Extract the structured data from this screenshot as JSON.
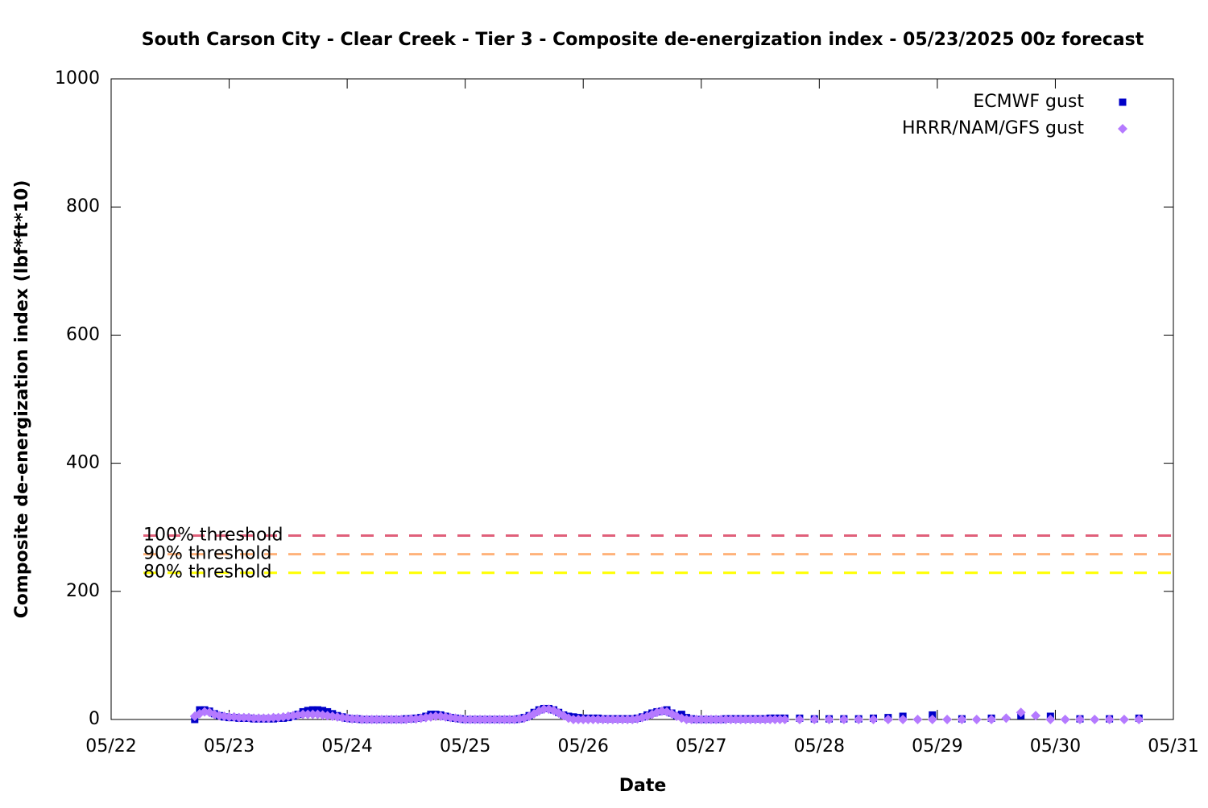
{
  "chart_data": {
    "type": "scatter",
    "title": "South Carson City - Clear Creek - Tier 3 - Composite de-energization index - 05/23/2025 00z forecast",
    "xlabel": "Date",
    "ylabel": "Composite de-energization index (lbf*ft*10)",
    "xlim": [
      0,
      216
    ],
    "xticks": [
      {
        "value": 0,
        "label": "05/22"
      },
      {
        "value": 24,
        "label": "05/23"
      },
      {
        "value": 48,
        "label": "05/24"
      },
      {
        "value": 72,
        "label": "05/25"
      },
      {
        "value": 96,
        "label": "05/26"
      },
      {
        "value": 120,
        "label": "05/27"
      },
      {
        "value": 144,
        "label": "05/28"
      },
      {
        "value": 168,
        "label": "05/29"
      },
      {
        "value": 192,
        "label": "05/30"
      },
      {
        "value": 216,
        "label": "05/31"
      }
    ],
    "ylim": [
      0,
      1000
    ],
    "yticks": [
      0,
      200,
      400,
      600,
      800,
      1000
    ],
    "legend": "top-right",
    "thresholds": [
      {
        "label": "100% threshold",
        "value": 287,
        "color": "#e0607a"
      },
      {
        "label": "90% threshold",
        "value": 258,
        "color": "#ffb27a"
      },
      {
        "label": "80% threshold",
        "value": 229,
        "color": "#ffff00"
      }
    ],
    "series": [
      {
        "name": "ECMWF gust",
        "color": "#0000c8",
        "marker": "square",
        "x": [
          17,
          18,
          19,
          20,
          21,
          22,
          23,
          24,
          25,
          26,
          27,
          28,
          29,
          30,
          31,
          32,
          33,
          34,
          35,
          36,
          37,
          38,
          39,
          40,
          41,
          42,
          43,
          44,
          45,
          46,
          47,
          48,
          49,
          50,
          51,
          52,
          53,
          54,
          55,
          56,
          57,
          58,
          59,
          60,
          61,
          62,
          63,
          64,
          65,
          66,
          67,
          68,
          69,
          70,
          71,
          72,
          73,
          74,
          75,
          76,
          77,
          78,
          79,
          80,
          81,
          82,
          83,
          84,
          85,
          86,
          87,
          88,
          89,
          90,
          91,
          92,
          93,
          94,
          95,
          96,
          97,
          98,
          99,
          100,
          101,
          102,
          103,
          104,
          105,
          106,
          107,
          108,
          109,
          110,
          111,
          112,
          113,
          114,
          115,
          116,
          117,
          118,
          119,
          120,
          121,
          122,
          123,
          124,
          125,
          126,
          127,
          128,
          129,
          130,
          131,
          132,
          133,
          134,
          135,
          136,
          137,
          140,
          143,
          146,
          149,
          152,
          155,
          158,
          161,
          167,
          173,
          179,
          185,
          191,
          197,
          203,
          209
        ],
        "values": [
          0,
          15,
          15,
          13,
          9,
          6,
          4,
          3,
          3,
          2,
          2,
          2,
          1,
          1,
          1,
          1,
          1,
          2,
          2,
          3,
          5,
          8,
          12,
          14,
          15,
          15,
          14,
          12,
          9,
          6,
          4,
          2,
          1,
          1,
          0,
          0,
          0,
          0,
          0,
          0,
          0,
          0,
          0,
          1,
          1,
          2,
          3,
          5,
          8,
          8,
          7,
          5,
          3,
          2,
          1,
          0,
          0,
          0,
          0,
          0,
          0,
          0,
          0,
          0,
          0,
          0,
          1,
          3,
          6,
          11,
          15,
          17,
          17,
          15,
          11,
          7,
          5,
          4,
          3,
          2,
          2,
          2,
          2,
          1,
          1,
          1,
          1,
          1,
          1,
          1,
          2,
          4,
          7,
          10,
          12,
          13,
          15,
          10,
          6,
          8,
          3,
          1,
          0,
          0,
          0,
          0,
          0,
          0,
          1,
          1,
          1,
          1,
          1,
          1,
          1,
          1,
          1,
          2,
          2,
          2,
          2,
          2,
          1,
          1,
          1,
          1,
          2,
          3,
          5,
          7,
          1,
          2,
          6,
          5,
          1,
          1,
          2
        ]
      },
      {
        "name": "HRRR/NAM/GFS gust",
        "color": "#b57aff",
        "marker": "diamond",
        "x": [
          17,
          18,
          19,
          20,
          21,
          22,
          23,
          24,
          25,
          26,
          27,
          28,
          29,
          30,
          31,
          32,
          33,
          34,
          35,
          36,
          37,
          38,
          39,
          40,
          41,
          42,
          43,
          44,
          45,
          46,
          47,
          48,
          49,
          50,
          51,
          52,
          53,
          54,
          55,
          56,
          57,
          58,
          59,
          60,
          61,
          62,
          63,
          64,
          65,
          66,
          67,
          68,
          69,
          70,
          71,
          72,
          73,
          74,
          75,
          76,
          77,
          78,
          79,
          80,
          81,
          82,
          83,
          84,
          85,
          86,
          87,
          88,
          89,
          90,
          91,
          92,
          93,
          94,
          95,
          96,
          97,
          98,
          99,
          100,
          101,
          102,
          103,
          104,
          105,
          106,
          107,
          108,
          109,
          110,
          111,
          112,
          113,
          114,
          115,
          116,
          117,
          118,
          119,
          120,
          121,
          122,
          123,
          124,
          125,
          126,
          127,
          128,
          129,
          130,
          131,
          132,
          133,
          134,
          135,
          136,
          137,
          140,
          143,
          146,
          149,
          152,
          155,
          158,
          161,
          164,
          167,
          170,
          173,
          176,
          179,
          182,
          185,
          188,
          191,
          194,
          197,
          200,
          203,
          206,
          209
        ],
        "values": [
          5,
          9,
          12,
          11,
          8,
          6,
          5,
          4,
          4,
          3,
          3,
          3,
          2,
          2,
          2,
          2,
          3,
          3,
          4,
          5,
          6,
          7,
          8,
          8,
          8,
          8,
          7,
          6,
          5,
          4,
          3,
          2,
          1,
          1,
          0,
          0,
          0,
          0,
          0,
          0,
          0,
          0,
          0,
          0,
          1,
          1,
          2,
          3,
          4,
          5,
          5,
          4,
          3,
          2,
          1,
          0,
          0,
          0,
          0,
          0,
          0,
          0,
          0,
          0,
          0,
          0,
          1,
          2,
          5,
          9,
          13,
          16,
          16,
          14,
          10,
          6,
          2,
          0,
          0,
          0,
          0,
          0,
          0,
          0,
          0,
          0,
          0,
          0,
          0,
          0,
          1,
          3,
          5,
          8,
          11,
          13,
          12,
          9,
          5,
          2,
          0,
          0,
          0,
          0,
          0,
          0,
          0,
          0,
          0,
          0,
          0,
          0,
          0,
          0,
          0,
          0,
          0,
          0,
          0,
          0,
          0,
          0,
          0,
          0,
          0,
          0,
          0,
          0,
          0,
          0,
          0,
          0,
          0,
          0,
          0,
          2,
          11,
          6,
          0,
          0,
          0,
          0,
          0,
          0,
          0
        ]
      }
    ]
  }
}
